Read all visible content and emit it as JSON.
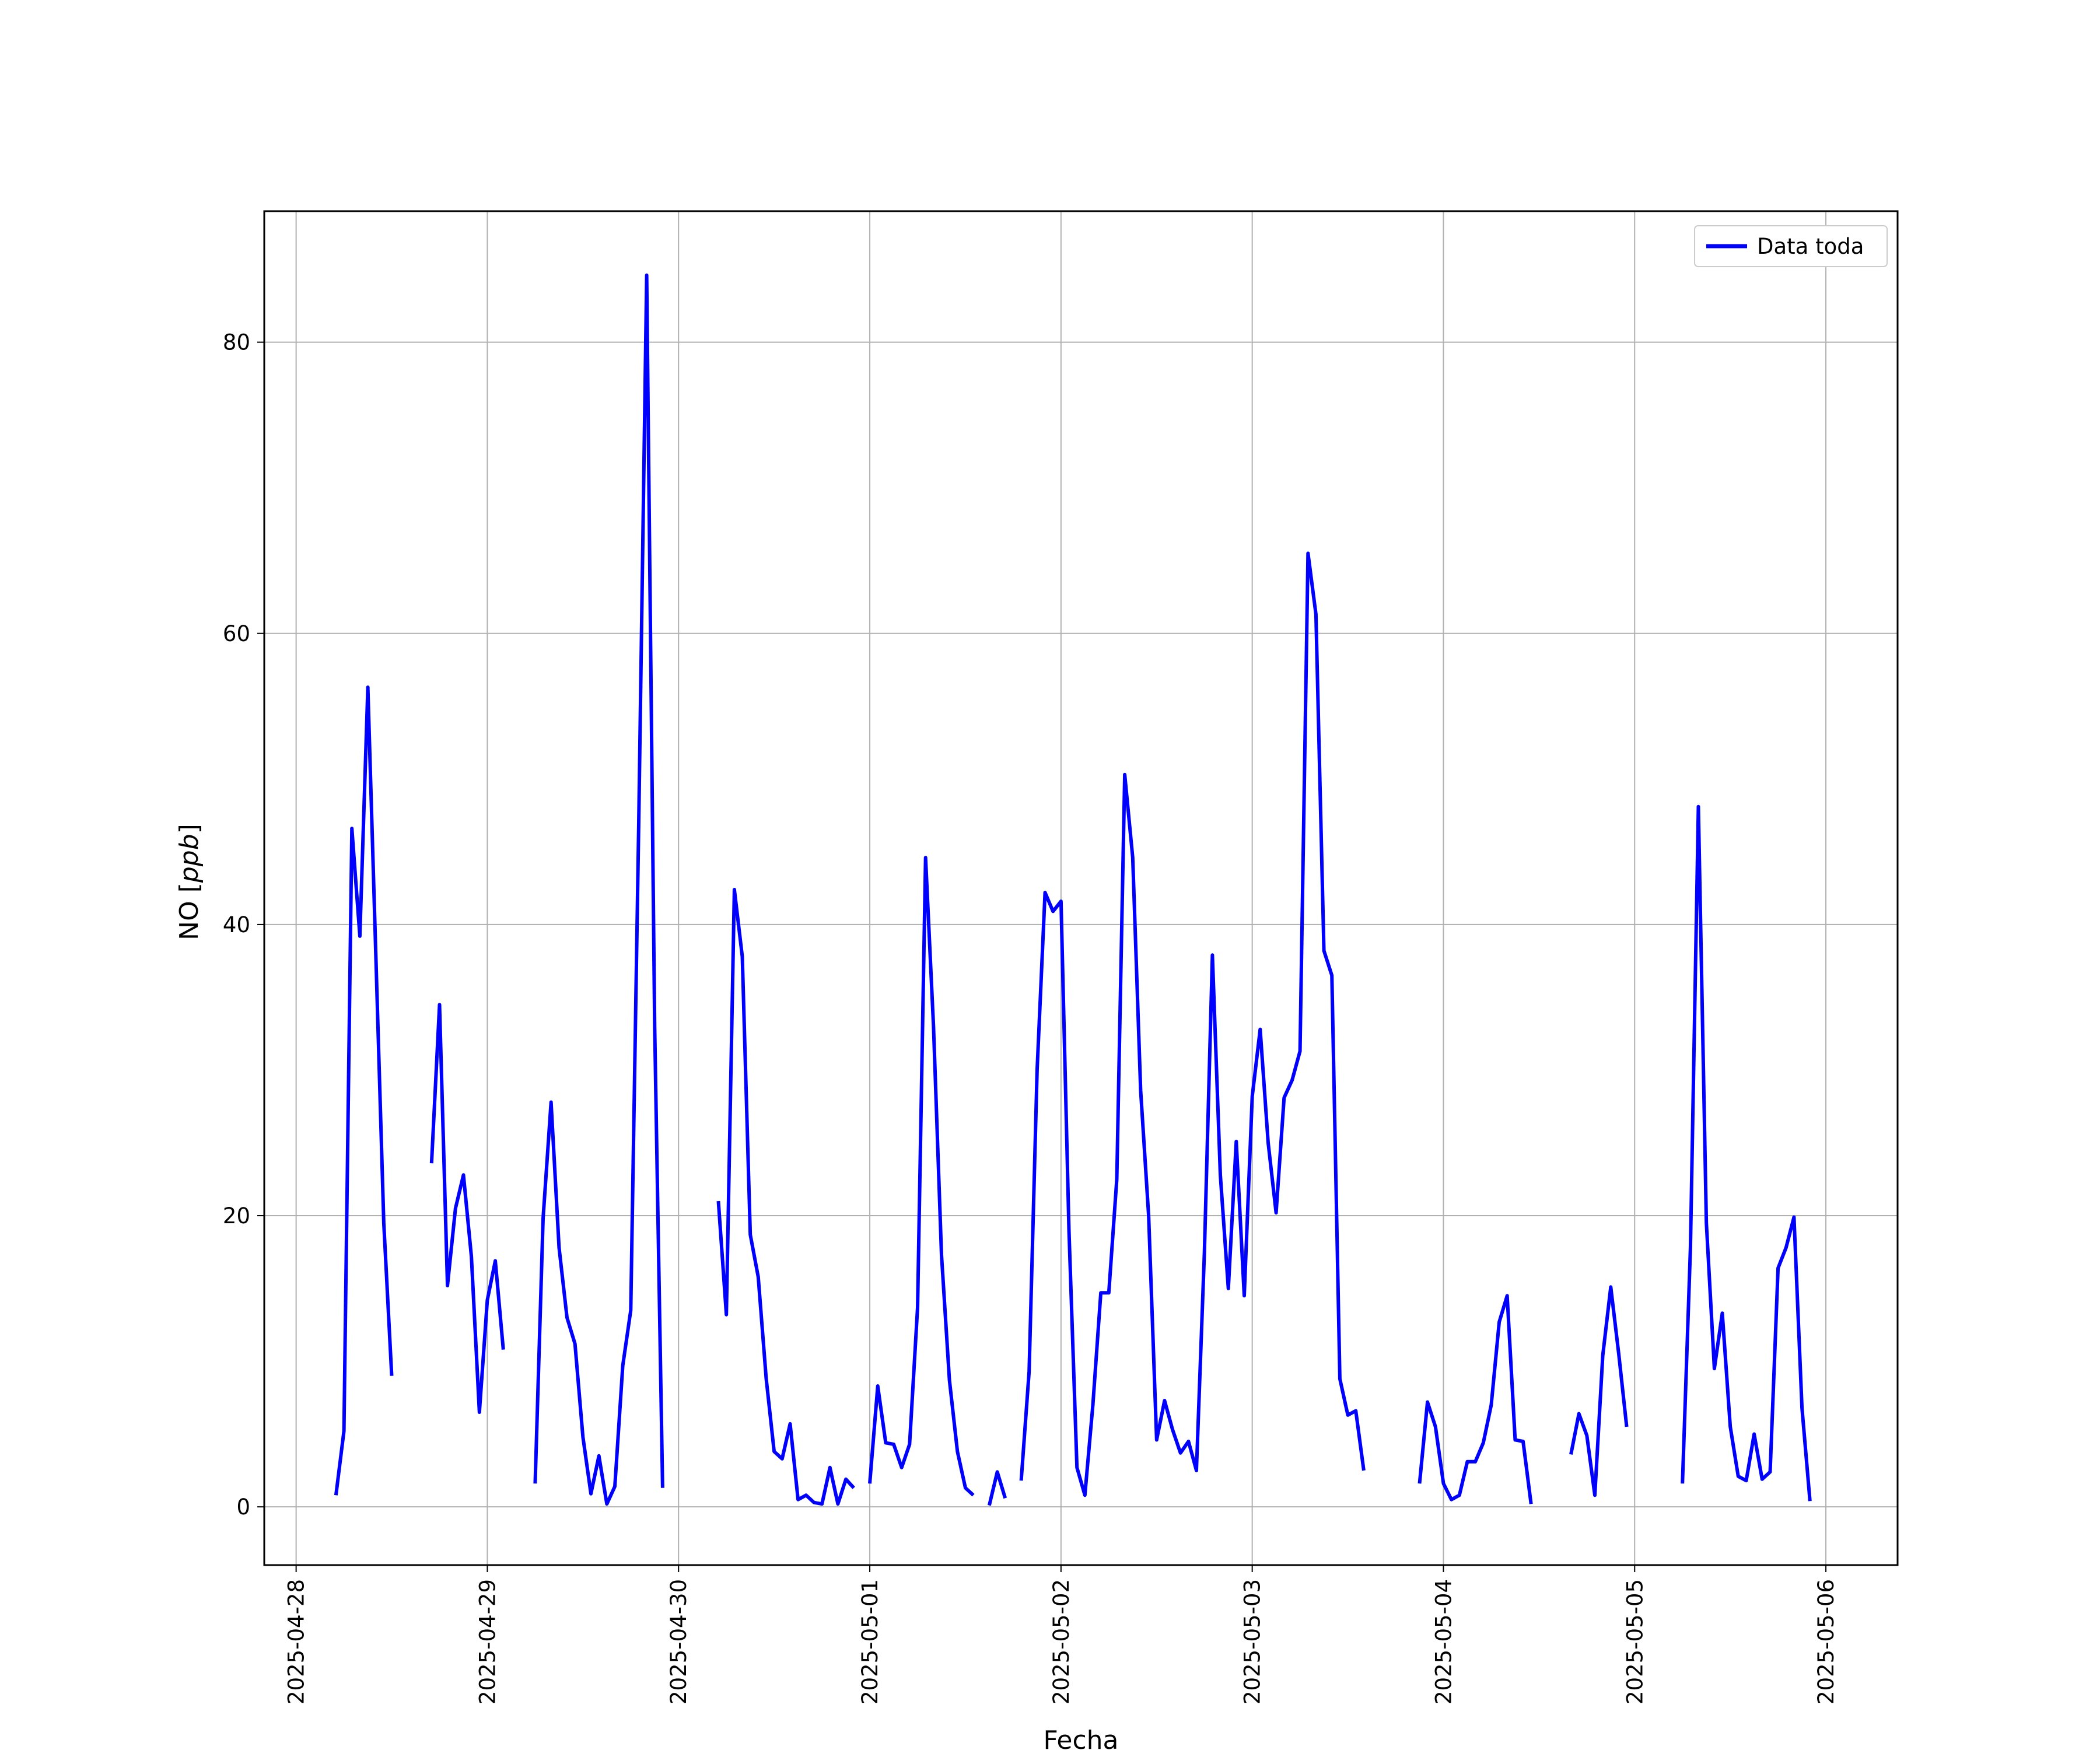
{
  "chart_data": {
    "type": "line",
    "title": "",
    "xlabel": "Fecha",
    "ylabel": "NO [ppb]",
    "ylabel_parts": {
      "species": "NO",
      "unit": "ppb"
    },
    "xlim": [
      "2025-04-27T20:00",
      "2025-05-06T09:00"
    ],
    "ylim": [
      -4,
      89
    ],
    "x_ticks": [
      "2025-04-28",
      "2025-04-29",
      "2025-04-30",
      "2025-05-01",
      "2025-05-02",
      "2025-05-03",
      "2025-05-04",
      "2025-05-05",
      "2025-05-06"
    ],
    "y_ticks": [
      0,
      20,
      40,
      60,
      80
    ],
    "grid": true,
    "legend_position": "top-right",
    "series": [
      {
        "name": "Data toda",
        "color": "#0000ff",
        "segments": [
          [
            [
              "2025-04-28T05:00",
              0.8
            ],
            [
              "2025-04-28T06:00",
              5.2
            ],
            [
              "2025-04-28T07:00",
              46.6
            ],
            [
              "2025-04-28T08:00",
              39.2
            ],
            [
              "2025-04-28T09:00",
              56.3
            ],
            [
              "2025-04-28T10:00",
              38.0
            ],
            [
              "2025-04-28T11:00",
              19.5
            ],
            [
              "2025-04-28T12:00",
              9.0
            ]
          ],
          [
            [
              "2025-04-28T17:00",
              23.6
            ],
            [
              "2025-04-28T18:00",
              34.5
            ],
            [
              "2025-04-28T19:00",
              15.2
            ],
            [
              "2025-04-28T20:00",
              20.5
            ],
            [
              "2025-04-28T21:00",
              22.8
            ],
            [
              "2025-04-28T22:00",
              17.2
            ],
            [
              "2025-04-28T23:00",
              6.5
            ],
            [
              "2025-04-29T00:00",
              14.2
            ],
            [
              "2025-04-29T01:00",
              16.9
            ],
            [
              "2025-04-29T02:00",
              10.8
            ]
          ],
          [
            [
              "2025-04-29T06:00",
              1.6
            ],
            [
              "2025-04-29T07:00",
              19.8
            ],
            [
              "2025-04-29T08:00",
              27.8
            ],
            [
              "2025-04-29T09:00",
              17.8
            ],
            [
              "2025-04-29T10:00",
              13.0
            ],
            [
              "2025-04-29T11:00",
              11.2
            ],
            [
              "2025-04-29T12:00",
              4.8
            ],
            [
              "2025-04-29T13:00",
              0.9
            ],
            [
              "2025-04-29T14:00",
              3.5
            ],
            [
              "2025-04-29T15:00",
              0.2
            ],
            [
              "2025-04-29T16:00",
              1.4
            ],
            [
              "2025-04-29T17:00",
              9.7
            ],
            [
              "2025-04-29T18:00",
              13.5
            ],
            [
              "2025-04-29T19:00",
              47.0
            ],
            [
              "2025-04-29T20:00",
              84.6
            ],
            [
              "2025-04-29T21:00",
              33.0
            ],
            [
              "2025-04-29T22:00",
              1.3
            ]
          ],
          [
            [
              "2025-04-30T05:00",
              21.0
            ],
            [
              "2025-04-30T06:00",
              13.2
            ],
            [
              "2025-04-30T07:00",
              42.4
            ],
            [
              "2025-04-30T08:00",
              37.8
            ],
            [
              "2025-04-30T09:00",
              18.7
            ],
            [
              "2025-04-30T10:00",
              15.8
            ],
            [
              "2025-04-30T11:00",
              8.8
            ],
            [
              "2025-04-30T12:00",
              3.8
            ],
            [
              "2025-04-30T13:00",
              3.3
            ],
            [
              "2025-04-30T14:00",
              5.7
            ],
            [
              "2025-04-30T15:00",
              0.5
            ],
            [
              "2025-04-30T16:00",
              0.8
            ],
            [
              "2025-04-30T17:00",
              0.3
            ],
            [
              "2025-04-30T18:00",
              0.2
            ],
            [
              "2025-04-30T19:00",
              2.7
            ],
            [
              "2025-04-30T20:00",
              0.2
            ],
            [
              "2025-04-30T21:00",
              1.9
            ],
            [
              "2025-04-30T22:00",
              1.3
            ]
          ],
          [
            [
              "2025-05-01T00:00",
              1.6
            ],
            [
              "2025-05-01T01:00",
              8.3
            ],
            [
              "2025-05-01T02:00",
              4.4
            ],
            [
              "2025-05-01T03:00",
              4.3
            ],
            [
              "2025-05-01T04:00",
              2.7
            ],
            [
              "2025-05-01T05:00",
              4.3
            ],
            [
              "2025-05-01T06:00",
              13.7
            ],
            [
              "2025-05-01T07:00",
              44.6
            ],
            [
              "2025-05-01T08:00",
              33.0
            ],
            [
              "2025-05-01T09:00",
              17.3
            ],
            [
              "2025-05-01T10:00",
              8.7
            ],
            [
              "2025-05-01T11:00",
              3.8
            ],
            [
              "2025-05-01T12:00",
              1.3
            ],
            [
              "2025-05-01T13:00",
              0.8
            ]
          ],
          [
            [
              "2025-05-01T15:00",
              0.1
            ],
            [
              "2025-05-01T16:00",
              2.4
            ],
            [
              "2025-05-01T17:00",
              0.6
            ]
          ],
          [
            [
              "2025-05-01T19:00",
              1.8
            ],
            [
              "2025-05-01T20:00",
              9.3
            ],
            [
              "2025-05-01T21:00",
              30.0
            ],
            [
              "2025-05-01T22:00",
              42.2
            ],
            [
              "2025-05-01T23:00",
              40.9
            ],
            [
              "2025-05-02T00:00",
              41.6
            ],
            [
              "2025-05-02T01:00",
              19.0
            ],
            [
              "2025-05-02T02:00",
              2.7
            ],
            [
              "2025-05-02T03:00",
              0.8
            ],
            [
              "2025-05-02T04:00",
              7.0
            ],
            [
              "2025-05-02T05:00",
              14.7
            ],
            [
              "2025-05-02T06:00",
              14.7
            ],
            [
              "2025-05-02T07:00",
              22.5
            ],
            [
              "2025-05-02T08:00",
              50.3
            ],
            [
              "2025-05-02T09:00",
              44.6
            ],
            [
              "2025-05-02T10:00",
              28.6
            ],
            [
              "2025-05-02T11:00",
              20.0
            ],
            [
              "2025-05-02T12:00",
              4.6
            ],
            [
              "2025-05-02T13:00",
              7.3
            ],
            [
              "2025-05-02T14:00",
              5.3
            ],
            [
              "2025-05-02T15:00",
              3.7
            ],
            [
              "2025-05-02T16:00",
              4.5
            ],
            [
              "2025-05-02T17:00",
              2.5
            ],
            [
              "2025-05-02T18:00",
              17.5
            ],
            [
              "2025-05-02T19:00",
              37.9
            ],
            [
              "2025-05-02T20:00",
              22.8
            ],
            [
              "2025-05-02T21:00",
              15.0
            ],
            [
              "2025-05-02T22:00",
              25.1
            ],
            [
              "2025-05-02T23:00",
              14.5
            ],
            [
              "2025-05-03T00:00",
              28.2
            ],
            [
              "2025-05-03T01:00",
              32.8
            ],
            [
              "2025-05-03T02:00",
              25.0
            ],
            [
              "2025-05-03T03:00",
              20.2
            ],
            [
              "2025-05-03T04:00",
              28.1
            ],
            [
              "2025-05-03T05:00",
              29.3
            ],
            [
              "2025-05-03T06:00",
              31.3
            ],
            [
              "2025-05-03T07:00",
              65.5
            ],
            [
              "2025-05-03T08:00",
              61.3
            ],
            [
              "2025-05-03T09:00",
              38.2
            ],
            [
              "2025-05-03T10:00",
              36.5
            ],
            [
              "2025-05-03T11:00",
              8.8
            ],
            [
              "2025-05-03T12:00",
              6.3
            ],
            [
              "2025-05-03T13:00",
              6.6
            ],
            [
              "2025-05-03T14:00",
              2.5
            ]
          ],
          [
            [
              "2025-05-03T21:00",
              1.6
            ],
            [
              "2025-05-03T22:00",
              7.2
            ],
            [
              "2025-05-03T23:00",
              5.5
            ],
            [
              "2025-05-04T00:00",
              1.6
            ],
            [
              "2025-05-04T01:00",
              0.5
            ],
            [
              "2025-05-04T02:00",
              0.8
            ],
            [
              "2025-05-04T03:00",
              3.1
            ],
            [
              "2025-05-04T04:00",
              3.1
            ],
            [
              "2025-05-04T05:00",
              4.4
            ],
            [
              "2025-05-04T06:00",
              7.0
            ],
            [
              "2025-05-04T07:00",
              12.7
            ],
            [
              "2025-05-04T08:00",
              14.5
            ],
            [
              "2025-05-04T09:00",
              4.6
            ],
            [
              "2025-05-04T10:00",
              4.5
            ],
            [
              "2025-05-04T11:00",
              0.2
            ]
          ],
          [
            [
              "2025-05-04T16:00",
              3.6
            ],
            [
              "2025-05-04T17:00",
              6.4
            ],
            [
              "2025-05-04T18:00",
              4.9
            ],
            [
              "2025-05-04T19:00",
              0.8
            ],
            [
              "2025-05-04T20:00",
              10.4
            ],
            [
              "2025-05-04T21:00",
              15.1
            ],
            [
              "2025-05-04T22:00",
              10.5
            ],
            [
              "2025-05-04T23:00",
              5.5
            ]
          ],
          [
            [
              "2025-05-05T06:00",
              1.6
            ],
            [
              "2025-05-05T07:00",
              17.8
            ],
            [
              "2025-05-05T08:00",
              48.1
            ],
            [
              "2025-05-05T09:00",
              19.5
            ],
            [
              "2025-05-05T10:00",
              9.5
            ],
            [
              "2025-05-05T11:00",
              13.3
            ],
            [
              "2025-05-05T12:00",
              5.5
            ],
            [
              "2025-05-05T13:00",
              2.1
            ],
            [
              "2025-05-05T14:00",
              1.8
            ],
            [
              "2025-05-05T15:00",
              5.0
            ],
            [
              "2025-05-05T16:00",
              1.9
            ],
            [
              "2025-05-05T17:00",
              2.4
            ],
            [
              "2025-05-05T18:00",
              16.4
            ],
            [
              "2025-05-05T19:00",
              17.8
            ],
            [
              "2025-05-05T20:00",
              19.9
            ],
            [
              "2025-05-05T21:00",
              6.8
            ],
            [
              "2025-05-05T22:00",
              0.4
            ]
          ]
        ]
      }
    ]
  }
}
